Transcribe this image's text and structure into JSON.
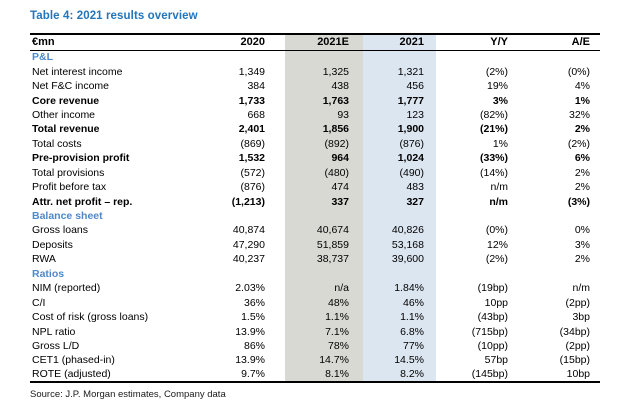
{
  "title": "Table 4: 2021 results overview",
  "source": "Source: J.P. Morgan estimates, Company data",
  "colors": {
    "title": "#2176bd",
    "section_header": "#4e88c8",
    "estimate_column_bg": "#d9d9d4",
    "actual_column_bg": "#dce6f1"
  },
  "table": {
    "columns": [
      "€mn",
      "2020",
      "2021E",
      "2021",
      "Y/Y",
      "A/E"
    ],
    "sections": [
      {
        "name": "P&L",
        "rows": [
          {
            "label": "Net interest income",
            "values": [
              "1,349",
              "1,325",
              "1,321",
              "(2%)",
              "(0%)"
            ],
            "bold": false
          },
          {
            "label": "Net F&C income",
            "values": [
              "384",
              "438",
              "456",
              "19%",
              "4%"
            ],
            "bold": false
          },
          {
            "label": "Core revenue",
            "values": [
              "1,733",
              "1,763",
              "1,777",
              "3%",
              "1%"
            ],
            "bold": true
          },
          {
            "label": "Other income",
            "values": [
              "668",
              "93",
              "123",
              "(82%)",
              "32%"
            ],
            "bold": false
          },
          {
            "label": "Total revenue",
            "values": [
              "2,401",
              "1,856",
              "1,900",
              "(21%)",
              "2%"
            ],
            "bold": true
          },
          {
            "label": "Total costs",
            "values": [
              "(869)",
              "(892)",
              "(876)",
              "1%",
              "(2%)"
            ],
            "bold": false
          },
          {
            "label": "Pre-provision profit",
            "values": [
              "1,532",
              "964",
              "1,024",
              "(33%)",
              "6%"
            ],
            "bold": true
          },
          {
            "label": "Total provisions",
            "values": [
              "(572)",
              "(480)",
              "(490)",
              "(14%)",
              "2%"
            ],
            "bold": false
          },
          {
            "label": "Profit before tax",
            "values": [
              "(876)",
              "474",
              "483",
              "n/m",
              "2%"
            ],
            "bold": false
          },
          {
            "label": "Attr. net profit – rep.",
            "values": [
              "(1,213)",
              "337",
              "327",
              "n/m",
              "(3%)"
            ],
            "bold": true
          }
        ]
      },
      {
        "name": "Balance sheet",
        "rows": [
          {
            "label": "Gross loans",
            "values": [
              "40,874",
              "40,674",
              "40,826",
              "(0%)",
              "0%"
            ],
            "bold": false
          },
          {
            "label": "Deposits",
            "values": [
              "47,290",
              "51,859",
              "53,168",
              "12%",
              "3%"
            ],
            "bold": false
          },
          {
            "label": "RWA",
            "values": [
              "40,237",
              "38,737",
              "39,600",
              "(2%)",
              "2%"
            ],
            "bold": false
          }
        ]
      },
      {
        "name": "Ratios",
        "rows": [
          {
            "label": "NIM (reported)",
            "values": [
              "2.03%",
              "n/a",
              "1.84%",
              "(19bp)",
              "n/m"
            ],
            "bold": false
          },
          {
            "label": "C/I",
            "values": [
              "36%",
              "48%",
              "46%",
              "10pp",
              "(2pp)"
            ],
            "bold": false
          },
          {
            "label": "Cost of risk (gross loans)",
            "values": [
              "1.5%",
              "1.1%",
              "1.1%",
              "(43bp)",
              "3bp"
            ],
            "bold": false
          },
          {
            "label": "NPL ratio",
            "values": [
              "13.9%",
              "7.1%",
              "6.8%",
              "(715bp)",
              "(34bp)"
            ],
            "bold": false
          },
          {
            "label": "Gross L/D",
            "values": [
              "86%",
              "78%",
              "77%",
              "(10pp)",
              "(2pp)"
            ],
            "bold": false
          },
          {
            "label": "CET1 (phased-in)",
            "values": [
              "13.9%",
              "14.7%",
              "14.5%",
              "57bp",
              "(15bp)"
            ],
            "bold": false
          },
          {
            "label": "ROTE (adjusted)",
            "values": [
              "9.7%",
              "8.1%",
              "8.2%",
              "(145bp)",
              "10bp"
            ],
            "bold": false
          }
        ]
      }
    ]
  }
}
